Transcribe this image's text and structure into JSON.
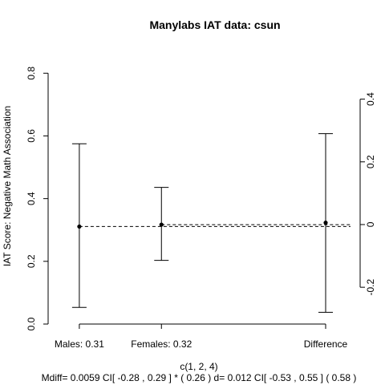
{
  "chart_data": {
    "type": "scatter",
    "title": "Manylabs IAT data:  csun",
    "ylabel": "IAT Score: Negative Math Association",
    "xlabel": "c(1, 2, 4)",
    "subtitle": "Mdiff= 0.0059  CI[ -0.28 , 0.29 ] *  ( 0.26 )   d= 0.012 CI[ -0.53 ,  0.55 ]  ( 0.58 )",
    "x": [
      1,
      2,
      4
    ],
    "categories": [
      "Males:  0.31",
      "Females:  0.32",
      "Difference"
    ],
    "left_axis": {
      "ylim": [
        0,
        0.88
      ],
      "ticks": [
        0.0,
        0.2,
        0.4,
        0.6,
        0.8
      ],
      "tick_labels": [
        "0.0",
        "0.2",
        "0.4",
        "0.6",
        "0.8"
      ]
    },
    "right_axis": {
      "offset": 0.3173,
      "ticks": [
        -0.2,
        0.0,
        0.2,
        0.4
      ],
      "tick_labels": [
        "-0.2",
        "0",
        "0.2",
        "0.4"
      ]
    },
    "points": [
      {
        "x": 1,
        "mean": 0.311,
        "lower": 0.053,
        "upper": 0.575,
        "axis": "left"
      },
      {
        "x": 2,
        "mean": 0.317,
        "lower": 0.203,
        "upper": 0.436,
        "axis": "left"
      },
      {
        "x": 4,
        "mean": 0.0059,
        "lower": -0.28,
        "upper": 0.29,
        "axis": "right"
      }
    ],
    "reference_lines": [
      {
        "name": "males-mean",
        "y": 0.311,
        "x_from": 1,
        "style": "dashed"
      },
      {
        "name": "females-mean",
        "y": 0.317,
        "x_from": 2,
        "style": "dashed"
      }
    ],
    "xlim": [
      0.62,
      4.42
    ],
    "grid": false,
    "legend": "none"
  }
}
